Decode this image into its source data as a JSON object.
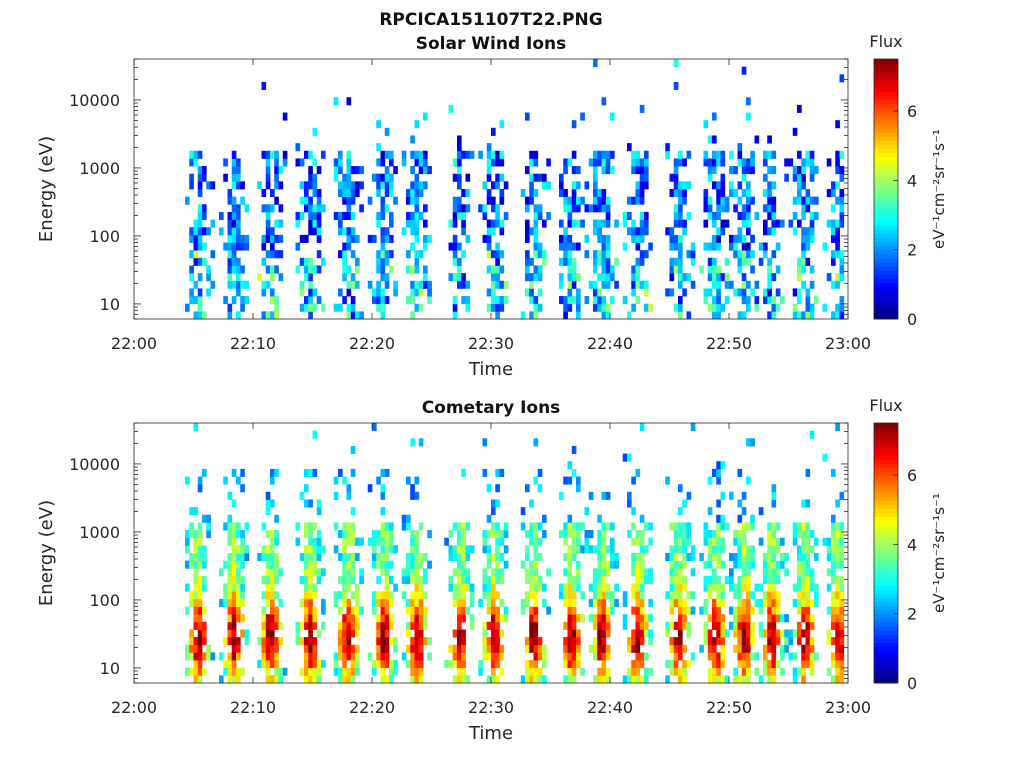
{
  "figure": {
    "title": "RPCICA151107T22.PNG"
  },
  "chart_data": [
    {
      "type": "heatmap",
      "title": "Solar Wind Ions",
      "xlabel": "Time",
      "ylabel": "Energy (eV)",
      "x_ticks": [
        "22:00",
        "22:10",
        "22:20",
        "22:30",
        "22:40",
        "22:50",
        "23:00"
      ],
      "xlim": [
        "22:00",
        "23:00"
      ],
      "y_scale": "log",
      "y_ticks": [
        "10",
        "100",
        "1000",
        "10000"
      ],
      "ylim": [
        6,
        40000
      ],
      "colorbar": {
        "label": "Flux",
        "unit": "eV⁻¹cm⁻²sr⁻¹s⁻¹",
        "ticks": [
          "0",
          "2",
          "4",
          "6"
        ],
        "range": [
          0,
          7.5
        ],
        "colormap": "jet"
      },
      "bursts_minutes": [
        5.4,
        8.4,
        11.5,
        14.8,
        18.0,
        21.0,
        23.8,
        27.4,
        30.3,
        33.6,
        36.8,
        39.4,
        42.3,
        45.8,
        48.9,
        51.3,
        53.6,
        56.4,
        59.2
      ],
      "flux_level": "low"
    },
    {
      "type": "heatmap",
      "title": "Cometary Ions",
      "xlabel": "Time",
      "ylabel": "Energy (eV)",
      "x_ticks": [
        "22:00",
        "22:10",
        "22:20",
        "22:30",
        "22:40",
        "22:50",
        "23:00"
      ],
      "xlim": [
        "22:00",
        "23:00"
      ],
      "y_scale": "log",
      "y_ticks": [
        "10",
        "100",
        "1000",
        "10000"
      ],
      "ylim": [
        6,
        40000
      ],
      "colorbar": {
        "label": "Flux",
        "unit": "eV⁻¹cm⁻²sr⁻¹s⁻¹",
        "ticks": [
          "0",
          "2",
          "4",
          "6"
        ],
        "range": [
          0,
          7.5
        ],
        "colormap": "jet"
      },
      "bursts_minutes": [
        5.4,
        8.4,
        11.5,
        14.8,
        18.0,
        21.0,
        23.8,
        27.4,
        30.3,
        33.6,
        36.8,
        39.4,
        42.3,
        45.8,
        48.9,
        51.3,
        53.6,
        56.4,
        59.2
      ],
      "flux_level": "high"
    }
  ]
}
